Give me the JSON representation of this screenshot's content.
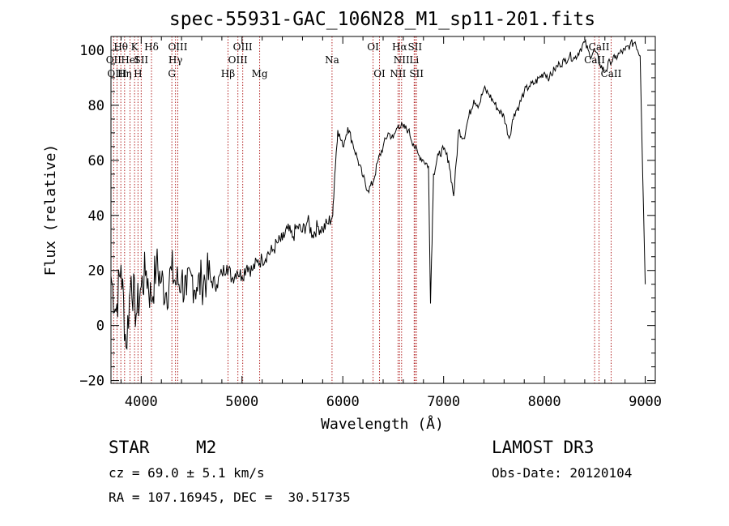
{
  "chart_data": {
    "type": "line",
    "title": "spec-55931-GAC_106N28_M1_sp11-201.fits",
    "xlabel": "Wavelength (Å)",
    "ylabel": "Flux (relative)",
    "xlim": [
      3700,
      9100
    ],
    "ylim": [
      -21,
      105
    ],
    "xticks": [
      4000,
      5000,
      6000,
      7000,
      8000,
      9000
    ],
    "yticks": [
      -20,
      0,
      20,
      40,
      60,
      80,
      100
    ],
    "xtick_labels": [
      "4000",
      "5000",
      "6000",
      "7000",
      "8000",
      "9000"
    ],
    "ytick_labels": [
      "−20",
      "0",
      "20",
      "40",
      "60",
      "80",
      "100"
    ],
    "series": [
      {
        "name": "flux",
        "x": [
          3700,
          3750,
          3800,
          3850,
          3900,
          3950,
          4000,
          4050,
          4100,
          4150,
          4200,
          4250,
          4300,
          4350,
          4400,
          4450,
          4500,
          4550,
          4600,
          4650,
          4700,
          4750,
          4800,
          4850,
          4900,
          4950,
          5000,
          5050,
          5100,
          5150,
          5200,
          5250,
          5300,
          5350,
          5400,
          5450,
          5500,
          5550,
          5600,
          5650,
          5700,
          5750,
          5800,
          5850,
          5900,
          5920,
          5950,
          6000,
          6050,
          6100,
          6150,
          6200,
          6250,
          6300,
          6350,
          6400,
          6450,
          6500,
          6550,
          6600,
          6650,
          6700,
          6750,
          6800,
          6850,
          6870,
          6900,
          6950,
          7000,
          7050,
          7100,
          7150,
          7200,
          7250,
          7300,
          7350,
          7400,
          7450,
          7500,
          7550,
          7600,
          7650,
          7700,
          7750,
          7800,
          7850,
          7900,
          7950,
          8000,
          8050,
          8100,
          8150,
          8200,
          8250,
          8300,
          8350,
          8400,
          8450,
          8500,
          8550,
          8600,
          8650,
          8700,
          8750,
          8800,
          8850,
          8900,
          8950,
          9000
        ],
        "y": [
          18,
          5,
          22,
          -8,
          18,
          4,
          14,
          20,
          9,
          22,
          16,
          12,
          20,
          15,
          17,
          11,
          18,
          14,
          16,
          18,
          16,
          15,
          19,
          22,
          17,
          20,
          18,
          22,
          20,
          23,
          24,
          26,
          27,
          30,
          31,
          35,
          32,
          36,
          34,
          38,
          33,
          36,
          35,
          37,
          40,
          55,
          71,
          65,
          72,
          66,
          60,
          54,
          49,
          52,
          60,
          65,
          70,
          68,
          73,
          72,
          71,
          66,
          62,
          60,
          58,
          8,
          55,
          62,
          64,
          60,
          47,
          71,
          68,
          76,
          82,
          80,
          86,
          84,
          81,
          78,
          76,
          68,
          77,
          80,
          85,
          87,
          88,
          90,
          92,
          90,
          93,
          95,
          96,
          98,
          97,
          100,
          103,
          98,
          100,
          95,
          92,
          96,
          97,
          99,
          100,
          102,
          103,
          98,
          15
        ]
      }
    ],
    "spectral_lines": [
      {
        "label": "Hθ",
        "wavelength": 3798,
        "row": 1
      },
      {
        "label": "OII",
        "wavelength": 3727,
        "row": 2
      },
      {
        "label": "OIII",
        "wavelength": 3760,
        "row": 3
      },
      {
        "label": "Hη",
        "wavelength": 3835,
        "row": 3
      },
      {
        "label": "HeI",
        "wavelength": 3889,
        "row": 2
      },
      {
        "label": "K",
        "wavelength": 3934,
        "row": 1
      },
      {
        "label": "SII",
        "wavelength": 4000,
        "row": 2
      },
      {
        "label": "H",
        "wavelength": 3968,
        "row": 3
      },
      {
        "label": "Hδ",
        "wavelength": 4102,
        "row": 1
      },
      {
        "label": "OIII",
        "wavelength": 4363,
        "row": 1
      },
      {
        "label": "Hγ",
        "wavelength": 4340,
        "row": 2
      },
      {
        "label": "G",
        "wavelength": 4304,
        "row": 3
      },
      {
        "label": "OIII",
        "wavelength": 5007,
        "row": 1
      },
      {
        "label": "OIII",
        "wavelength": 4959,
        "row": 2
      },
      {
        "label": "Hβ",
        "wavelength": 4861,
        "row": 3
      },
      {
        "label": "Mg",
        "wavelength": 5175,
        "row": 3
      },
      {
        "label": "Na",
        "wavelength": 5893,
        "row": 2
      },
      {
        "label": "OI",
        "wavelength": 6300,
        "row": 1
      },
      {
        "label": "OI",
        "wavelength": 6364,
        "row": 3
      },
      {
        "label": "Hα",
        "wavelength": 6563,
        "row": 1
      },
      {
        "label": "SII",
        "wavelength": 6716,
        "row": 1
      },
      {
        "label": "NII",
        "wavelength": 6583,
        "row": 2
      },
      {
        "label": "Li",
        "wavelength": 6708,
        "row": 2
      },
      {
        "label": "NII",
        "wavelength": 6548,
        "row": 3
      },
      {
        "label": "SII",
        "wavelength": 6731,
        "row": 3
      },
      {
        "label": "CaII",
        "wavelength": 8542,
        "row": 1
      },
      {
        "label": "CaII",
        "wavelength": 8498,
        "row": 2
      },
      {
        "label": "CaII",
        "wavelength": 8662,
        "row": 3
      }
    ]
  },
  "info": {
    "object_type": "STAR",
    "subclass": "M2",
    "survey": "LAMOST DR3",
    "cz": "cz = 69.0 ± 5.1 km/s",
    "obs_date": "Obs-Date: 20120104",
    "coords": "RA = 107.16945, DEC =  30.51735"
  },
  "colors": {
    "spectrum": "#000000",
    "line_markers": "#b22222",
    "axes": "#000000",
    "background": "#ffffff"
  }
}
